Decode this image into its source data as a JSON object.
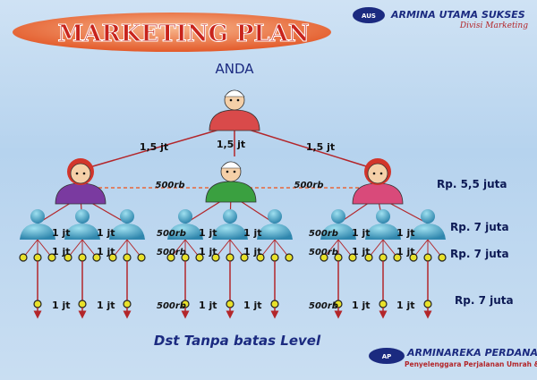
{
  "title": "MARKETING PLAN",
  "company": {
    "name": "ARMINA UTAMA SUKSES",
    "division": "Divisi Marketing",
    "logo_text": "AUS"
  },
  "footer_company": {
    "name": "ARMINAREKA PERDANA",
    "tagline": "Penyelenggara Perjalanan Umrah & Haji Plus",
    "logo_text": "AP"
  },
  "root_label": "ANDA",
  "level1_bonus": [
    "1,5 jt",
    "1,5 jt",
    "1,5 jt"
  ],
  "level1_pair_bonus": [
    "500rb",
    "500rb"
  ],
  "level_rows": [
    {
      "labels": [
        "1 jt",
        "1 jt",
        "500rb",
        "1 jt",
        "1 jt",
        "500rb",
        "1 jt",
        "1 jt"
      ],
      "total": ""
    },
    {
      "labels": [
        "1 jt",
        "1 jt",
        "500rb",
        "1 jt",
        "1 jt",
        "500rb",
        "1 jt",
        "1 jt"
      ],
      "total": ""
    },
    {
      "labels": [
        "1 jt",
        "1 jt",
        "500rb",
        "1 jt",
        "1 jt",
        "500rb",
        "1 jt",
        "1 jt"
      ],
      "total": ""
    }
  ],
  "totals": [
    "Rp. 5,5 juta",
    "Rp. 7 juta",
    "Rp. 7 juta",
    "Rp. 7 juta"
  ],
  "footnote": "Dst Tanpa batas Level",
  "colors": {
    "line": "#b3262a",
    "title_oval": "#e8673a",
    "title_text": "#c8241c",
    "navy": "#1b2a80",
    "person_blue": "#3a9cc0",
    "dot": "#e8e12a"
  }
}
